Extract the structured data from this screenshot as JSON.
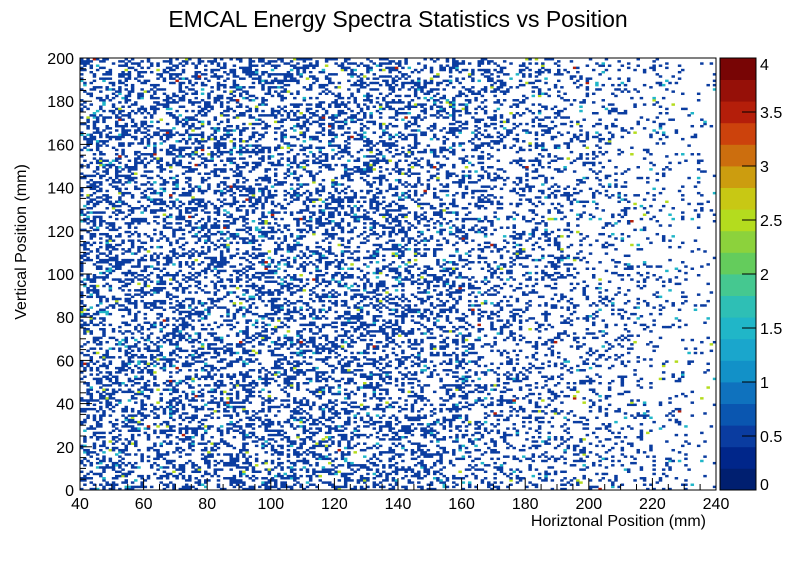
{
  "chart_data": {
    "type": "heatmap",
    "title": "EMCAL Energy Spectra Statistics vs Position",
    "xlabel": "Horiztonal Position (mm)",
    "ylabel": "Vertical Position (mm)",
    "xlim": [
      40,
      240
    ],
    "ylim": [
      0,
      200
    ],
    "x_ticks": [
      40,
      60,
      80,
      100,
      120,
      140,
      160,
      180,
      200,
      220,
      240
    ],
    "y_ticks": [
      0,
      20,
      40,
      60,
      80,
      100,
      120,
      140,
      160,
      180,
      200
    ],
    "x_tick_labels": [
      "40",
      "60",
      "80",
      "100",
      "120",
      "140",
      "160",
      "180",
      "200",
      "220",
      "240"
    ],
    "y_tick_labels": [
      "0",
      "20",
      "40",
      "60",
      "80",
      "100",
      "120",
      "140",
      "160",
      "180",
      "200"
    ],
    "bins": {
      "nx": 200,
      "ny": 200,
      "bin_width_mm": 1
    },
    "zlim": [
      0,
      4
    ],
    "colorbar_ticks": [
      0,
      0.5,
      1,
      1.5,
      2,
      2.5,
      3,
      3.5,
      4
    ],
    "colorbar_tick_labels": [
      "0",
      "0.5",
      "1",
      "1.5",
      "2",
      "2.5",
      "3",
      "3.5",
      "4"
    ],
    "colorbar_colors": [
      "#001f70",
      "#00268a",
      "#0a3ca0",
      "#0a56b0",
      "#0f72be",
      "#1291c8",
      "#1aa6cc",
      "#20b6c8",
      "#2ebfb5",
      "#45c890",
      "#64cc5c",
      "#8cd23c",
      "#b4dc1e",
      "#c8c814",
      "#cc9d0f",
      "#cc6e0e",
      "#cc420c",
      "#b41e0a",
      "#961008",
      "#780505"
    ],
    "occupancy": {
      "description_note": "Sparse, mostly single-count bins; density highest near x=40-140 and falls off toward x=240",
      "value_probabilities": {
        "1": 0.925,
        "2": 0.05,
        "3": 0.02,
        "4": 0.005
      }
    },
    "grid": false,
    "legend": "colorbar-right"
  }
}
